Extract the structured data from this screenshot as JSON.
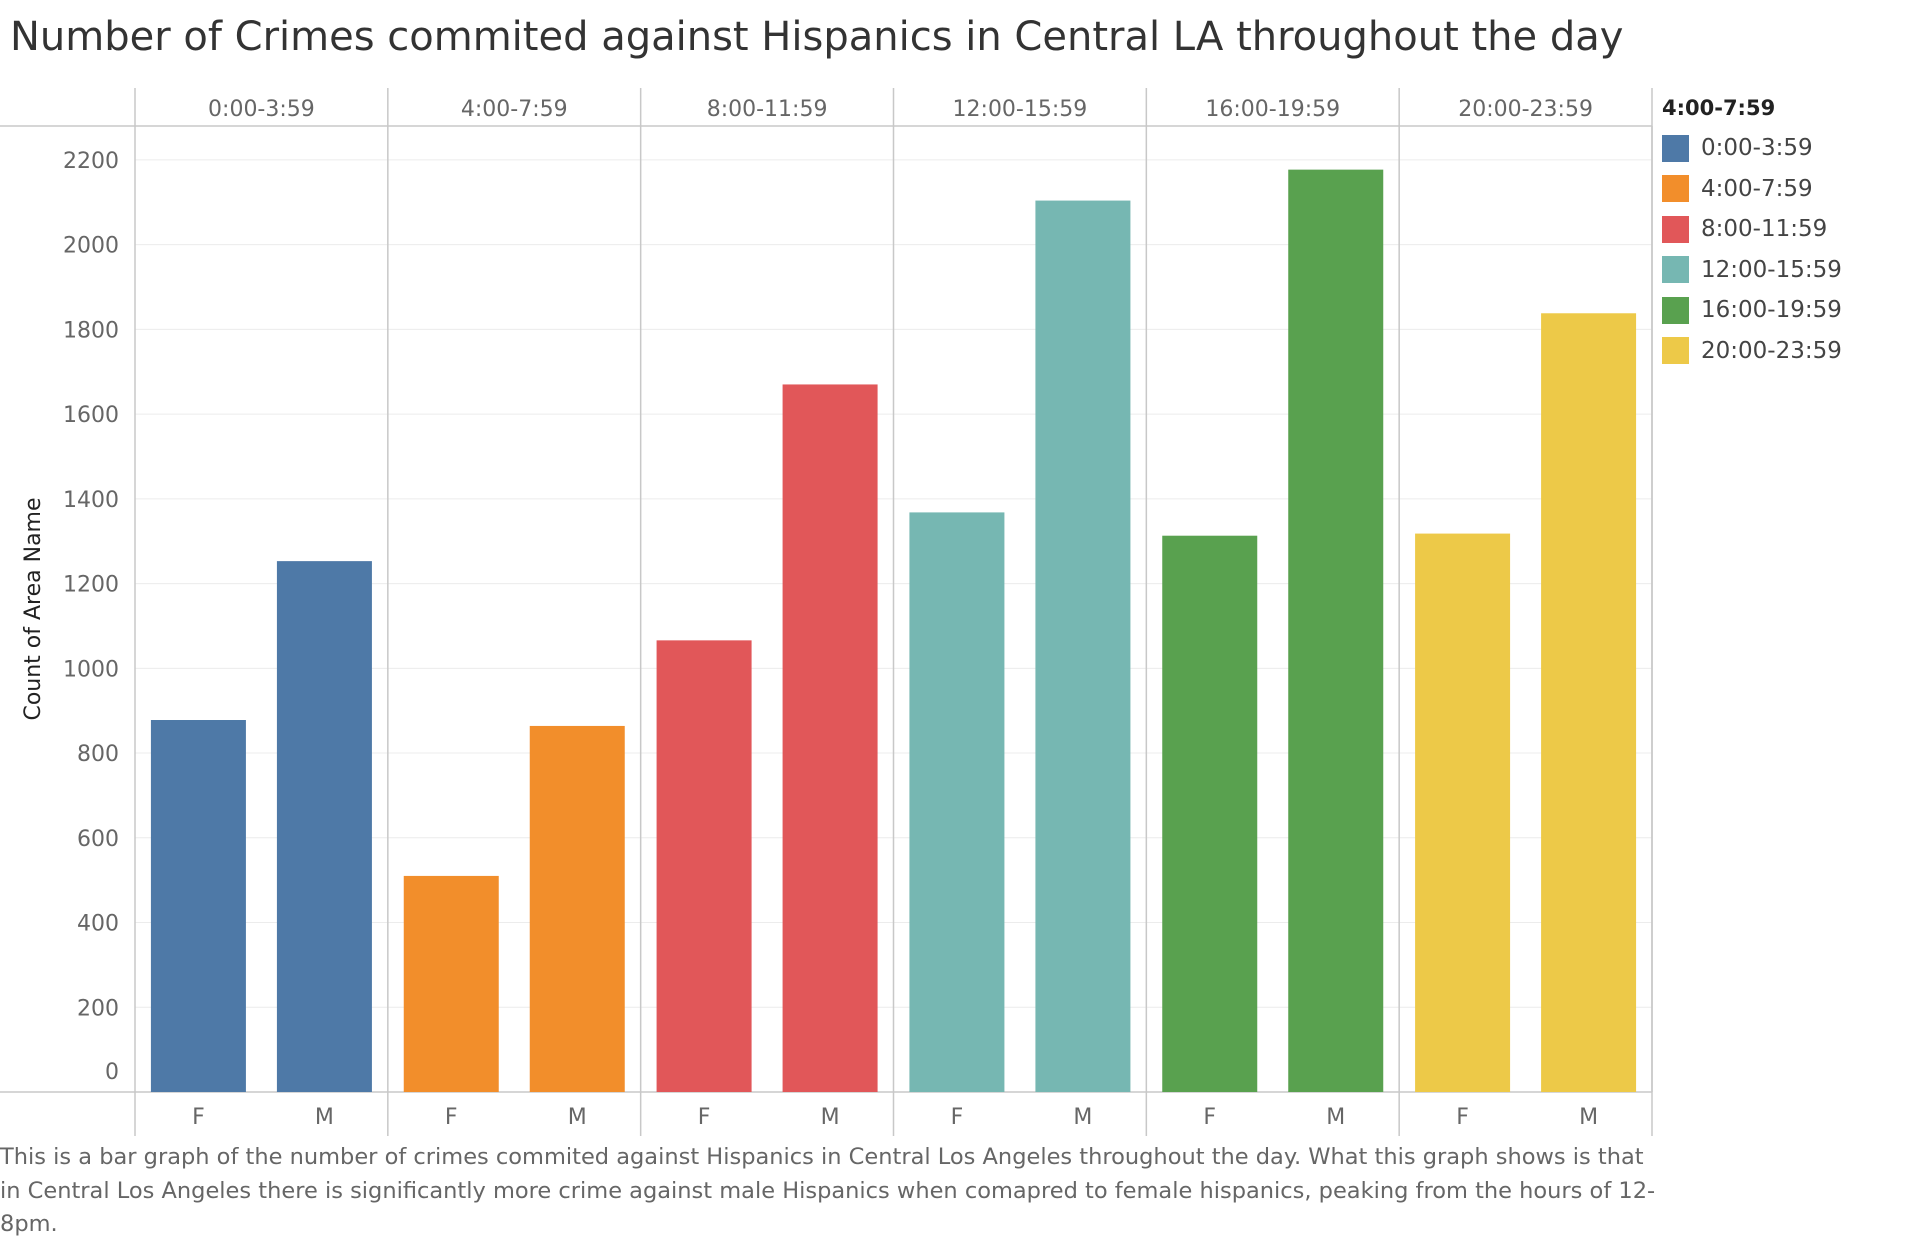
{
  "title": "Number of Crimes commited against Hispanics in Central LA throughout the day",
  "caption": "This is a bar graph of the number of crimes commited against Hispanics in Central Los Angeles throughout the day. What this graph shows is that in Central Los Angeles there is significantly more crime against male Hispanics when comapred to female hispanics, peaking from the hours of 12-8pm.",
  "legend": {
    "title": "4:00-7:59",
    "items": [
      {
        "label": "0:00-3:59",
        "color": "#4e79a7"
      },
      {
        "label": "4:00-7:59",
        "color": "#f28e2b"
      },
      {
        "label": "8:00-11:59",
        "color": "#e15759"
      },
      {
        "label": "12:00-15:59",
        "color": "#76b7b2"
      },
      {
        "label": "16:00-19:59",
        "color": "#59a14f"
      },
      {
        "label": "20:00-23:59",
        "color": "#edc948"
      }
    ]
  },
  "chart_data": {
    "type": "bar",
    "title": "Number of Crimes commited against Hispanics in Central LA throughout the day",
    "ylabel": "Count of Area Name",
    "ylim": [
      0,
      2280
    ],
    "yticks": [
      0,
      200,
      400,
      600,
      800,
      1000,
      1200,
      1400,
      1600,
      1800,
      2000,
      2200
    ],
    "grid": true,
    "legend_position": "right",
    "panels": [
      "0:00-3:59",
      "4:00-7:59",
      "8:00-11:59",
      "12:00-15:59",
      "16:00-19:59",
      "20:00-23:59"
    ],
    "categories": [
      "F",
      "M"
    ],
    "colors": [
      "#4e79a7",
      "#f28e2b",
      "#e15759",
      "#76b7b2",
      "#59a14f",
      "#edc948"
    ],
    "values": [
      [
        878,
        1253
      ],
      [
        510,
        864
      ],
      [
        1066,
        1670
      ],
      [
        1368,
        2104
      ],
      [
        1313,
        2177
      ],
      [
        1318,
        1838
      ]
    ]
  }
}
